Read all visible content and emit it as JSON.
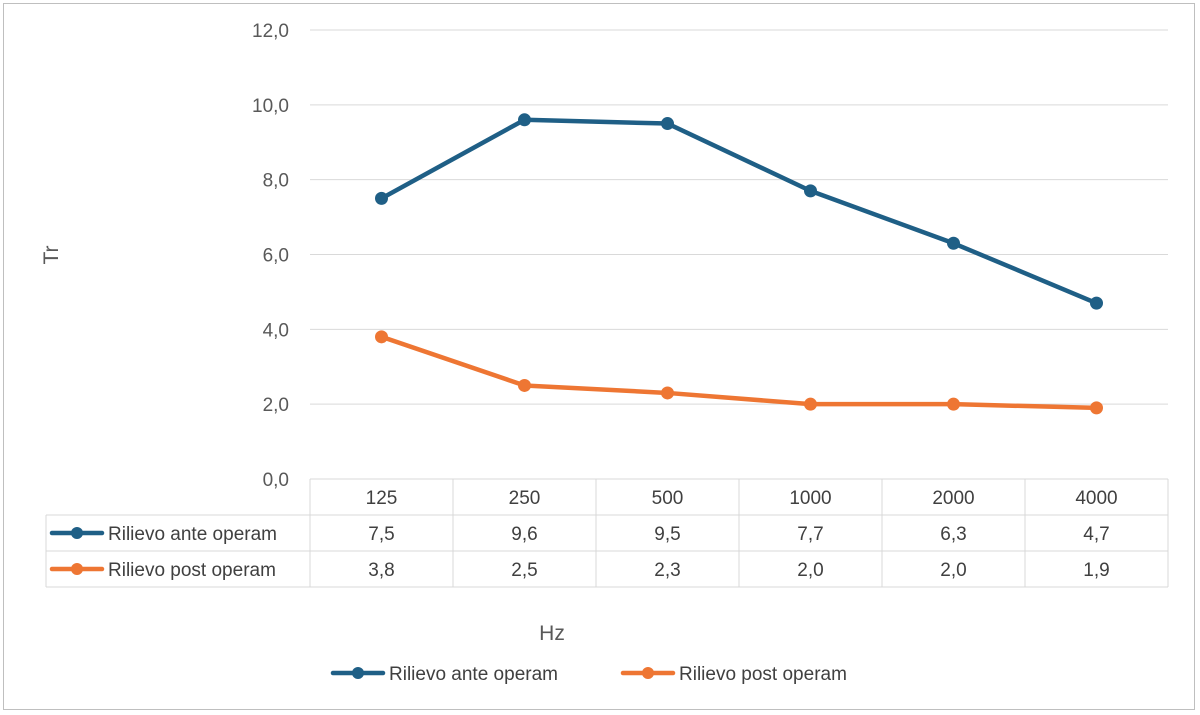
{
  "chart_data": {
    "type": "line",
    "categories": [
      "125",
      "250",
      "500",
      "1000",
      "2000",
      "4000"
    ],
    "series": [
      {
        "name": "Rilievo ante operam",
        "values": [
          7.5,
          9.6,
          9.5,
          7.7,
          6.3,
          4.7
        ],
        "color": "#1f5f86",
        "labels": [
          "7,5",
          "9,6",
          "9,5",
          "7,7",
          "6,3",
          "4,7"
        ]
      },
      {
        "name": "Rilievo post operam",
        "values": [
          3.8,
          2.5,
          2.3,
          2.0,
          2.0,
          1.9
        ],
        "color": "#ee7633",
        "labels": [
          "3,8",
          "2,5",
          "2,3",
          "2,0",
          "2,0",
          "1,9"
        ]
      }
    ],
    "y_ticks": [
      "0,0",
      "2,0",
      "4,0",
      "6,0",
      "8,0",
      "10,0",
      "12,0"
    ],
    "ylim": [
      0,
      12
    ],
    "xlabel": "Hz",
    "ylabel": "Tr",
    "grid": true,
    "legend_position": "bottom",
    "data_table": true
  }
}
